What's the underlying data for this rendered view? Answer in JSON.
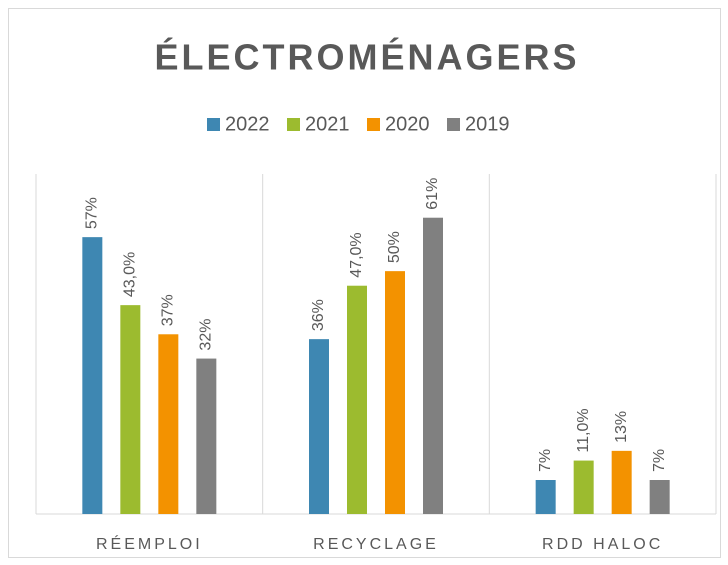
{
  "chart_data": {
    "type": "bar",
    "title": "ÉLECTROMÉNAGERS",
    "categories": [
      "RÉEMPLOI",
      "RECYCLAGE",
      "RDD HALOC"
    ],
    "series": [
      {
        "name": "2022",
        "color": "#3e87b2",
        "values": [
          57,
          36,
          7
        ],
        "value_labels": [
          "57%",
          "36%",
          "7%"
        ]
      },
      {
        "name": "2021",
        "color": "#9cbb2f",
        "values": [
          43,
          47,
          11
        ],
        "value_labels": [
          "43,0%",
          "47,0%",
          "11,0%"
        ]
      },
      {
        "name": "2020",
        "color": "#f39200",
        "values": [
          37,
          50,
          13
        ],
        "value_labels": [
          "37%",
          "50%",
          "13%"
        ]
      },
      {
        "name": "2019",
        "color": "#808080",
        "values": [
          32,
          61,
          7
        ],
        "value_labels": [
          "32%",
          "61%",
          "7%"
        ]
      }
    ],
    "ylim": [
      0,
      70
    ],
    "legend": "top"
  }
}
